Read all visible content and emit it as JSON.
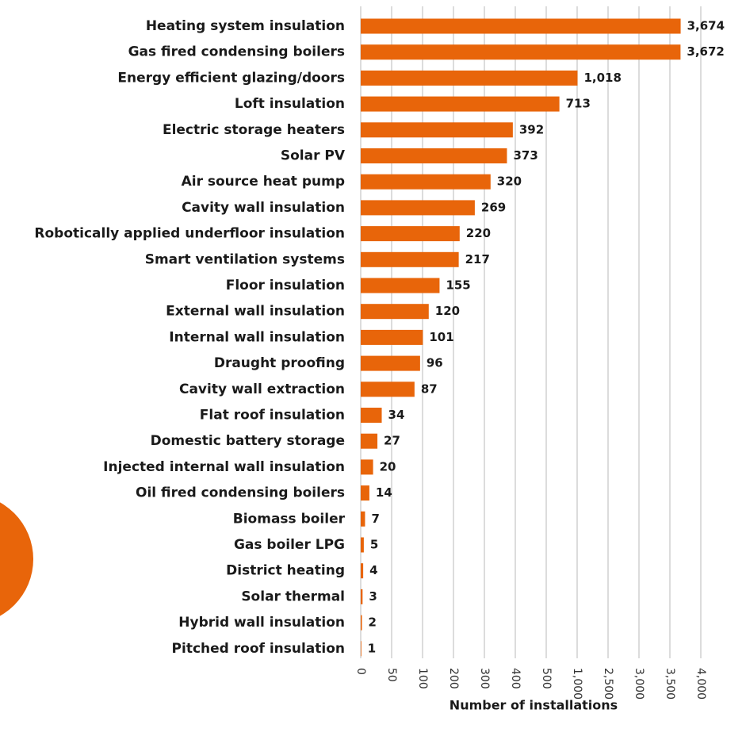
{
  "chart_data": {
    "type": "bar",
    "orientation": "horizontal",
    "x_axis_label": "Number of installations",
    "categories": [
      "Heating system insulation",
      "Gas fired condensing boilers",
      "Energy efficient glazing/doors",
      "Loft insulation",
      "Electric storage heaters",
      "Solar PV",
      "Air source heat pump",
      "Cavity wall insulation",
      "Robotically applied underfloor insulation",
      "Smart ventilation systems",
      "Floor insulation",
      "External wall insulation",
      "Internal wall insulation",
      "Draught proofing",
      "Cavity wall extraction",
      "Flat roof insulation",
      "Domestic battery storage",
      "Injected internal wall insulation",
      "Oil fired condensing boilers",
      "Biomass boiler",
      "Gas boiler LPG",
      "District heating",
      "Solar thermal",
      "Hybrid wall insulation",
      "Pitched roof insulation"
    ],
    "values": [
      3674,
      3672,
      1018,
      713,
      392,
      373,
      320,
      269,
      220,
      217,
      155,
      120,
      101,
      96,
      87,
      34,
      27,
      20,
      14,
      7,
      5,
      4,
      3,
      2,
      1
    ],
    "value_labels": [
      "3,674",
      "3,672",
      "1,018",
      "713",
      "392",
      "373",
      "320",
      "269",
      "220",
      "217",
      "155",
      "120",
      "101",
      "96",
      "87",
      "34",
      "27",
      "20",
      "14",
      "7",
      "5",
      "4",
      "3",
      "2",
      "1"
    ],
    "color": "#e8650a",
    "xlim": [
      0,
      4000
    ],
    "xticks": [
      0,
      50,
      100,
      200,
      300,
      400,
      500,
      {
        "value": 1000,
        "label": "1,000"
      },
      {
        "value": 2500,
        "label": "2,500"
      },
      {
        "value": 3000,
        "label": "3,000"
      },
      {
        "value": 3500,
        "label": "3,500"
      },
      {
        "value": 4000,
        "label": "4,000"
      }
    ],
    "grid": true
  }
}
